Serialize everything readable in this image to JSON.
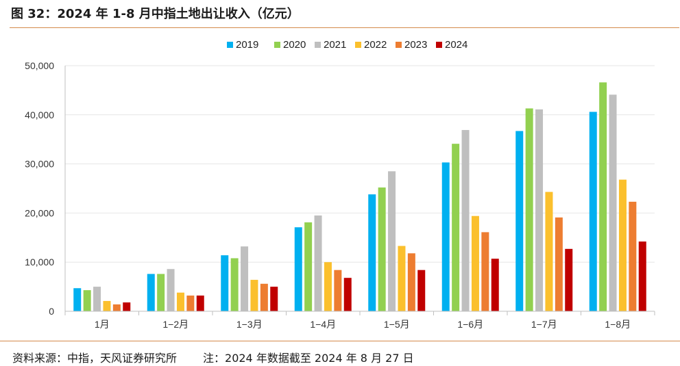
{
  "title": "图 32：2024 年 1-8 月中指土地出让收入（亿元）",
  "footer": {
    "source": "资料来源：中指，天风证券研究所",
    "note": "注：2024 年数据截至 2024 年 8 月 27 日"
  },
  "chart_data": {
    "type": "bar",
    "title": "",
    "xlabel": "",
    "ylabel": "",
    "ylim": [
      0,
      50000
    ],
    "yticks": [
      0,
      10000,
      20000,
      30000,
      40000,
      50000
    ],
    "ytick_labels": [
      "0",
      "10,000",
      "20,000",
      "30,000",
      "40,000",
      "50,000"
    ],
    "grid": true,
    "legend_position": "top-center",
    "categories": [
      "1月",
      "1−2月",
      "1−3月",
      "1−4月",
      "1−5月",
      "1−6月",
      "1−7月",
      "1−8月"
    ],
    "series": [
      {
        "name": "2019",
        "color": "#00b0f0",
        "values": [
          4700,
          7600,
          11400,
          17100,
          23800,
          30300,
          36700,
          40600
        ]
      },
      {
        "name": "2020",
        "color": "#92d050",
        "values": [
          4300,
          7600,
          10800,
          18100,
          25200,
          34100,
          41300,
          46600
        ]
      },
      {
        "name": "2021",
        "color": "#bfbfbf",
        "values": [
          5000,
          8600,
          13200,
          19500,
          28500,
          36900,
          41100,
          44100
        ]
      },
      {
        "name": "2022",
        "color": "#fbc02d",
        "values": [
          2100,
          3800,
          6400,
          10000,
          13300,
          19400,
          24300,
          26800
        ]
      },
      {
        "name": "2023",
        "color": "#ed7d31",
        "values": [
          1400,
          3200,
          5600,
          8400,
          11800,
          16100,
          19100,
          22300
        ]
      },
      {
        "name": "2024",
        "color": "#c00000",
        "values": [
          1800,
          3200,
          5000,
          6800,
          8400,
          10700,
          12700,
          14200
        ]
      }
    ]
  }
}
